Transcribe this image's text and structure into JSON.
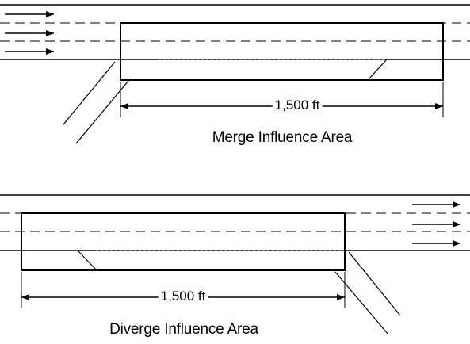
{
  "merge": {
    "dimension_label": "1,500 ft",
    "caption": "Merge Influence Area"
  },
  "diverge": {
    "dimension_label": "1,500 ft",
    "caption": "Diverge Influence Area"
  },
  "colors": {
    "ink": "#000000",
    "ramp_dotted": "#777777",
    "background": "#ffffff"
  }
}
